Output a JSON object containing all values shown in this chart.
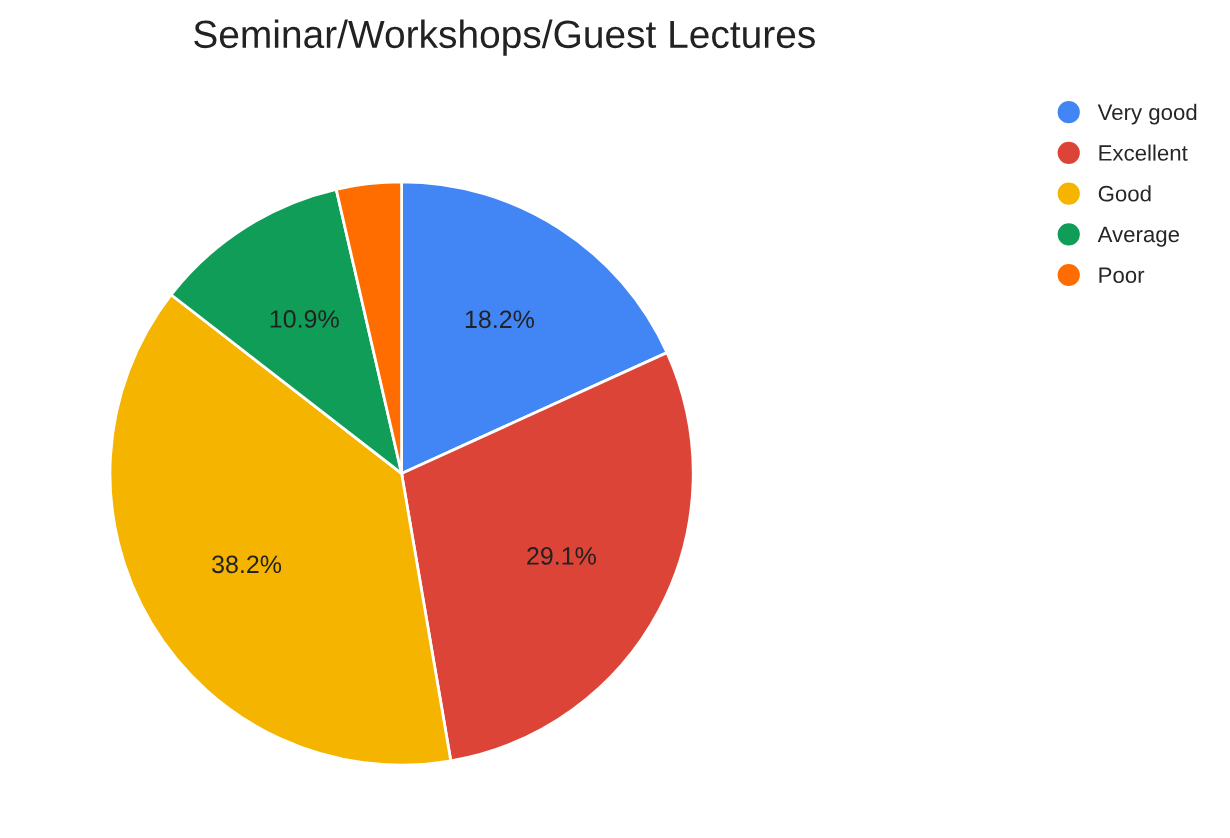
{
  "chart_data": {
    "type": "pie",
    "title": "Seminar/Workshops/Guest Lectures",
    "categories": [
      "Very good",
      "Excellent",
      "Good",
      "Average",
      "Poor"
    ],
    "values": [
      18.2,
      29.1,
      38.2,
      10.9,
      3.6
    ],
    "value_labels": [
      "18.2%",
      "29.1%",
      "38.2%",
      "10.9%",
      null
    ],
    "colors": [
      "#4285f4",
      "#db4437",
      "#f4b400",
      "#0f9d58",
      "#ff6d01"
    ],
    "legend": "top right"
  }
}
